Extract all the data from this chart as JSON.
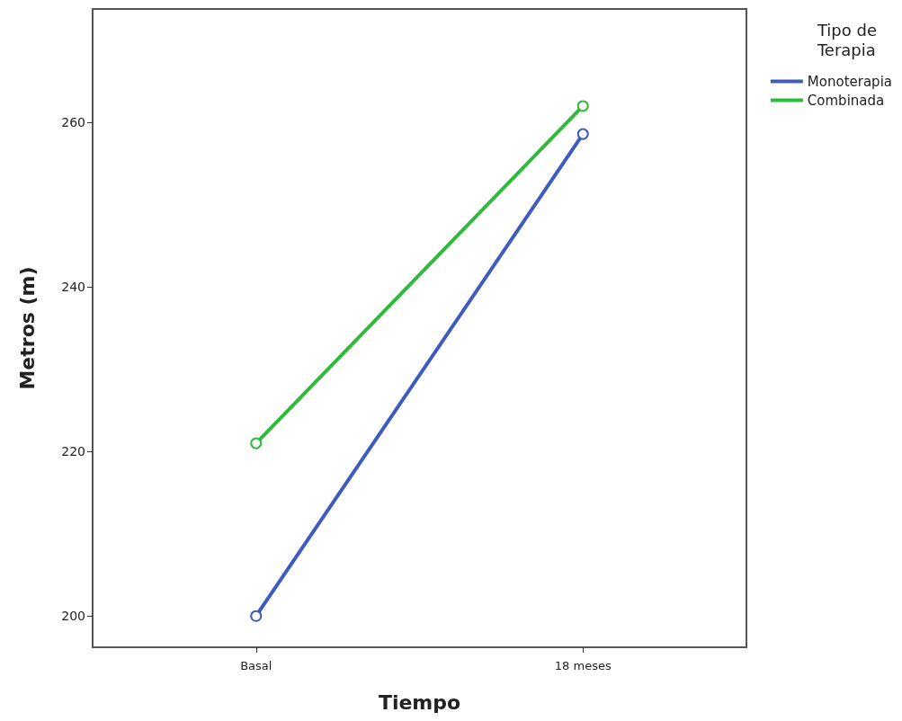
{
  "chart_data": {
    "type": "line",
    "xlabel": "Tiempo",
    "ylabel": "Metros (m)",
    "legend_title": "Tipo de\nTerapia",
    "categories": [
      "Basal",
      "18 meses"
    ],
    "series": [
      {
        "name": "Monoterapia",
        "color": "#3f5bbf",
        "values": [
          200,
          258.6
        ]
      },
      {
        "name": "Combinada",
        "color": "#2fba3c",
        "values": [
          221,
          262
        ]
      }
    ],
    "ylim": [
      196.2,
      273.8
    ],
    "yticks": [
      200,
      220,
      240,
      260
    ],
    "grid": false,
    "legend": "top right",
    "marker": "circle",
    "line_style": "solid"
  }
}
